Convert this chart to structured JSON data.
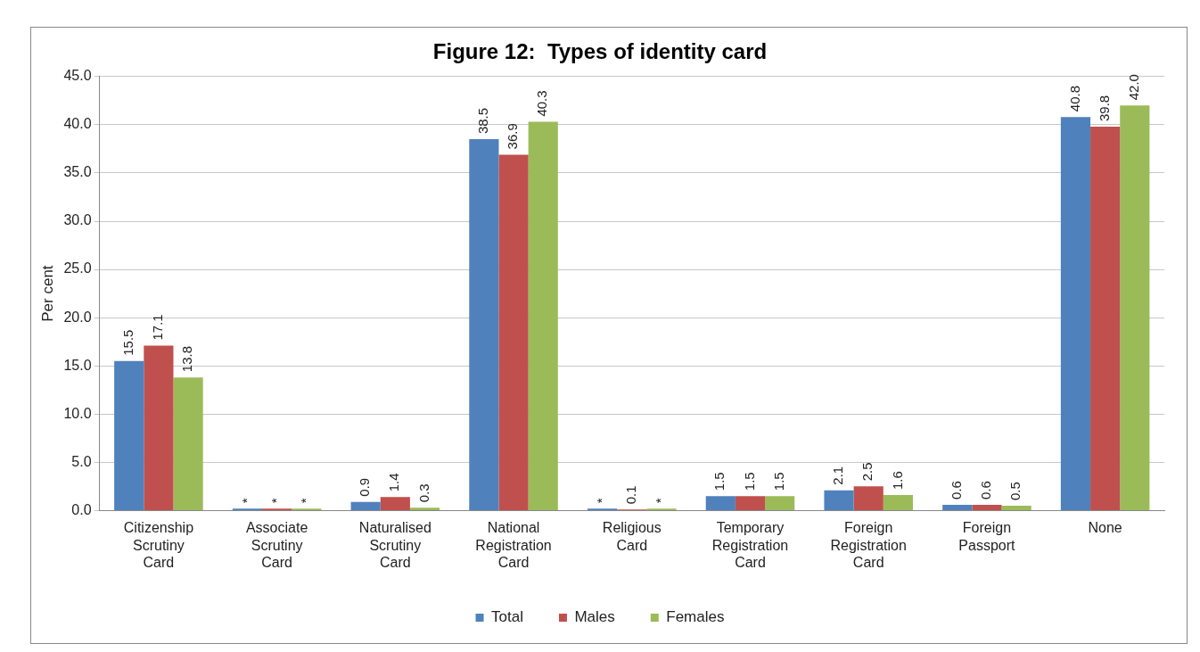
{
  "chart_data": {
    "type": "bar",
    "title": "Figure 12:  Types of identity card",
    "ylabel": "Per cent",
    "categories": [
      "Citizenship Scrutiny Card",
      "Associate Scrutiny Card",
      "Naturalised Scrutiny Card",
      "National Registration Card",
      "Religious Card",
      "Temporary Registration Card",
      "Foreign Registration Card",
      "Foreign Passport",
      "None"
    ],
    "series": [
      {
        "name": "Total",
        "color": "#4f81bd",
        "values": [
          15.5,
          0.2,
          0.9,
          38.5,
          0.2,
          1.5,
          2.1,
          0.6,
          40.8
        ],
        "value_labels": [
          "15.5",
          "*",
          "0.9",
          "38.5",
          "*",
          "1.5",
          "2.1",
          "0.6",
          "40.8"
        ]
      },
      {
        "name": "Males",
        "color": "#c0504d",
        "values": [
          17.1,
          0.2,
          1.4,
          36.9,
          0.1,
          1.5,
          2.5,
          0.6,
          39.8
        ],
        "value_labels": [
          "17.1",
          "*",
          "1.4",
          "36.9",
          "0.1",
          "1.5",
          "2.5",
          "0.6",
          "39.8"
        ]
      },
      {
        "name": "Females",
        "color": "#9bbb59",
        "values": [
          13.8,
          0.2,
          0.3,
          40.3,
          0.2,
          1.5,
          1.6,
          0.5,
          42.0
        ],
        "value_labels": [
          "13.8",
          "*",
          "0.3",
          "40.3",
          "*",
          "1.5",
          "1.6",
          "0.5",
          "42.0"
        ]
      }
    ],
    "ylim": [
      0,
      45
    ],
    "yticks": [
      {
        "value": 0,
        "label": "0.0"
      },
      {
        "value": 5,
        "label": "5.0"
      },
      {
        "value": 10,
        "label": "10.0"
      },
      {
        "value": 15,
        "label": "15.0"
      },
      {
        "value": 20,
        "label": "20.0"
      },
      {
        "value": 25,
        "label": "25.0"
      },
      {
        "value": 30,
        "label": "30.0"
      },
      {
        "value": 35,
        "label": "35.0"
      },
      {
        "value": 40,
        "label": "40.0"
      },
      {
        "value": 45,
        "label": "45.0"
      }
    ],
    "grid": "y",
    "legend": "bottom"
  }
}
